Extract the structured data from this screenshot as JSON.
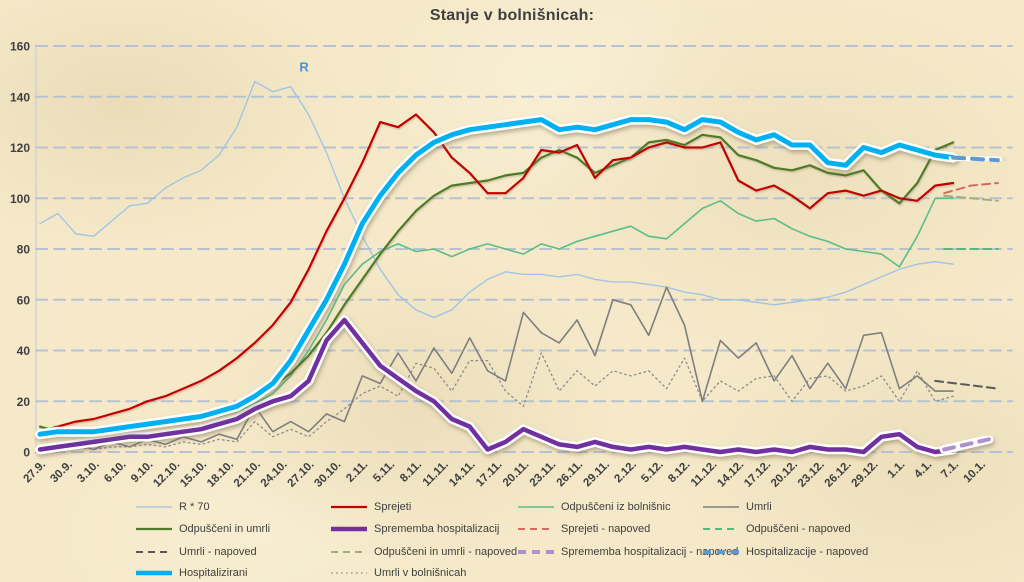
{
  "title": "Stanje v bolnišnicah:",
  "colors": {
    "background": "#f5e9c9",
    "grid": "#b7c1d4",
    "axis": "#c2c9d8",
    "text": "#3f3f3f"
  },
  "annotation": {
    "text": "R",
    "day": 29.5,
    "value": 150,
    "color": "#4d93d9"
  },
  "chart_data": {
    "type": "line",
    "title": "Stanje v bolnišnicah:",
    "x_axis": {
      "tick_interval_days": 3,
      "tick_labels": [
        "27.9.",
        "30.9.",
        "3.10.",
        "6.10.",
        "9.10.",
        "12.10.",
        "15.10.",
        "18.10.",
        "21.10.",
        "24.10.",
        "27.10.",
        "30.10.",
        "2.11.",
        "5.11.",
        "8.11.",
        "11.11.",
        "14.11.",
        "17.11.",
        "20.11.",
        "23.11.",
        "26.11.",
        "29.11.",
        "2.12.",
        "5.12.",
        "8.12.",
        "11.12.",
        "14.12.",
        "17.12.",
        "20.12.",
        "23.12.",
        "26.12.",
        "29.12.",
        "1.1.",
        "4.1.",
        "7.1.",
        "10.1."
      ]
    },
    "y_axis": {
      "min": 0,
      "max": 160,
      "step": 20
    },
    "grid": true,
    "sample_step_days": 2,
    "series": [
      {
        "key": "r70",
        "label": "R * 70",
        "color": "#9dc3e6",
        "width": 1.3,
        "values": [
          90,
          94,
          86,
          85,
          91,
          97,
          98,
          104,
          108,
          111,
          117,
          128,
          146,
          142,
          144,
          133,
          118,
          100,
          85,
          72,
          62,
          56,
          53,
          56,
          63,
          68,
          71,
          70,
          70,
          69,
          70,
          68,
          67,
          67,
          66,
          65,
          63,
          62,
          60,
          60,
          59,
          58,
          59,
          60,
          61,
          63,
          66,
          69,
          72,
          74,
          75,
          74
        ]
      },
      {
        "key": "umrli-v-bolnisnicah",
        "label": "Umrli v bolnišnicah",
        "color": "#8c8c8c",
        "width": 1.3,
        "dash": "1.6 3.4",
        "values": [
          1,
          1,
          2,
          1,
          2,
          2,
          3,
          2,
          4,
          3,
          5,
          4,
          12,
          6,
          9,
          6,
          12,
          17,
          23,
          26,
          22,
          35,
          33,
          24,
          36,
          36,
          24,
          18,
          39,
          24,
          32,
          26,
          32,
          30,
          32,
          25,
          37,
          20,
          28,
          24,
          29,
          30,
          20,
          29,
          30,
          24,
          26,
          30,
          20,
          32,
          20,
          22
        ]
      },
      {
        "key": "umrli",
        "label": "Umrli",
        "color": "#7f7f7f",
        "width": 1.6,
        "values": [
          2,
          1,
          3,
          1,
          4,
          2,
          5,
          3,
          6,
          4,
          7,
          5,
          18,
          8,
          12,
          8,
          15,
          12,
          30,
          27,
          39,
          28,
          41,
          31,
          45,
          32,
          28,
          55,
          47,
          43,
          52,
          38,
          60,
          58,
          46,
          65,
          50,
          20,
          44,
          37,
          43,
          28,
          38,
          25,
          35,
          25,
          46,
          47,
          25,
          30,
          24,
          24
        ]
      },
      {
        "key": "odpusceni-iz-bolnisnic",
        "label": "Odpuščeni iz bolnišnic",
        "color": "#5abe88",
        "width": 1.6,
        "values": [
          8,
          7,
          8,
          7,
          8,
          9,
          10,
          11,
          12,
          13,
          14,
          16,
          19,
          23,
          30,
          40,
          52,
          66,
          74,
          79,
          82,
          79,
          80,
          77,
          80,
          82,
          80,
          78,
          82,
          80,
          83,
          85,
          87,
          89,
          85,
          84,
          90,
          96,
          99,
          94,
          91,
          92,
          88,
          85,
          83,
          80,
          79,
          78,
          73,
          85,
          100,
          100
        ]
      },
      {
        "key": "odpusceni-in-umrli",
        "label": "Odpuščeni in umrli",
        "color": "#4e7b28",
        "width": 2.2,
        "halo": true,
        "values": [
          10,
          8,
          9,
          8,
          9,
          10,
          11,
          12,
          13,
          15,
          17,
          19,
          22,
          26,
          31,
          38,
          47,
          58,
          68,
          78,
          87,
          95,
          101,
          105,
          106,
          107,
          109,
          110,
          116,
          119,
          116,
          110,
          113,
          116,
          122,
          123,
          121,
          125,
          124,
          117,
          115,
          112,
          111,
          113,
          110,
          109,
          111,
          103,
          98,
          106,
          119,
          122
        ]
      },
      {
        "key": "sprejeti",
        "label": "Sprejeti",
        "color": "#c00000",
        "width": 2.2,
        "halo": true,
        "values": [
          8,
          10,
          12,
          13,
          15,
          17,
          20,
          22,
          25,
          28,
          32,
          37,
          43,
          50,
          59,
          72,
          87,
          100,
          114,
          130,
          128,
          133,
          126,
          116,
          110,
          102,
          102,
          108,
          119,
          118,
          121,
          108,
          115,
          116,
          120,
          122,
          120,
          120,
          122,
          107,
          103,
          105,
          101,
          96,
          102,
          103,
          101,
          103,
          100,
          99,
          105,
          106
        ]
      },
      {
        "key": "umrli-napoved",
        "label": "Umrli - napoved",
        "color": "#595959",
        "width": 2,
        "dash": "8 5",
        "points": [
          [
            100,
            28
          ],
          [
            107,
            25
          ]
        ]
      },
      {
        "key": "sprejeti-napoved",
        "label": "Sprejeti - napoved",
        "color": "#d9695f",
        "width": 2,
        "dash": "8 5",
        "points": [
          [
            101,
            102
          ],
          [
            104,
            105
          ],
          [
            107,
            106
          ]
        ]
      },
      {
        "key": "odpusceni-napoved",
        "label": "Odpuščeni - napoved",
        "color": "#4fbc7e",
        "width": 2,
        "dash": "8 5",
        "points": [
          [
            101,
            80
          ],
          [
            107,
            80
          ]
        ]
      },
      {
        "key": "odpusceni-in-umrli-napoved",
        "label": "Odpuščeni in umrli - napoved",
        "color": "#9faf76",
        "width": 2,
        "dash": "8 5",
        "points": [
          [
            101,
            101
          ],
          [
            107,
            99
          ]
        ]
      },
      {
        "key": "sprememba-hospitalizacij",
        "label": "Sprememba hospitalizacij",
        "color": "#7030a0",
        "width": 4.5,
        "glow": true,
        "values": [
          1,
          2,
          3,
          4,
          5,
          6,
          6,
          7,
          8,
          9,
          11,
          13,
          17,
          20,
          22,
          28,
          44,
          52,
          43,
          34,
          29,
          24,
          20,
          13,
          10,
          1,
          4,
          9,
          6,
          3,
          2,
          4,
          2,
          1,
          2,
          1,
          2,
          1,
          0,
          1,
          0,
          1,
          0,
          2,
          1,
          1,
          0,
          6,
          7,
          2,
          0,
          1
        ]
      },
      {
        "key": "sprememba-hospitalizacij-napoved",
        "label": "Sprememba hospitalizacij - napoved",
        "color": "#b08fce",
        "width": 4,
        "dash": "10 8",
        "glow": true,
        "points": [
          [
            101,
            1
          ],
          [
            106,
            5
          ]
        ]
      },
      {
        "key": "hospitalizirani",
        "label": "Hospitalizirani",
        "color": "#00b0f0",
        "width": 5,
        "glow": true,
        "values": [
          7,
          8,
          8,
          8,
          9,
          10,
          11,
          12,
          13,
          14,
          16,
          18,
          22,
          27,
          36,
          48,
          60,
          74,
          90,
          101,
          110,
          117,
          122,
          125,
          127,
          128,
          129,
          130,
          131,
          127,
          128,
          127,
          129,
          131,
          131,
          130,
          127,
          131,
          130,
          126,
          123,
          125,
          121,
          121,
          114,
          113,
          120,
          118,
          121,
          119,
          117,
          116
        ]
      },
      {
        "key": "hospitalizacije-napoved",
        "label": "Hospitalizacije - napoved",
        "color": "#5b9bd5",
        "width": 4,
        "dash": "11 8",
        "glow": true,
        "points": [
          [
            102,
            116
          ],
          [
            107,
            115
          ]
        ]
      }
    ]
  },
  "legend": {
    "columns": [
      [
        "r70",
        "odpusceni-in-umrli",
        "umrli-napoved",
        "hospitalizirani"
      ],
      [
        "sprejeti",
        "sprememba-hospitalizacij",
        "odpusceni-in-umrli-napoved",
        "umrli-v-bolnisnicah"
      ],
      [
        "odpusceni-iz-bolnisnic",
        "sprejeti-napoved",
        "sprememba-hospitalizacij-napoved"
      ],
      [
        "umrli",
        "odpusceni-napoved",
        "hospitalizacije-napoved"
      ]
    ]
  }
}
